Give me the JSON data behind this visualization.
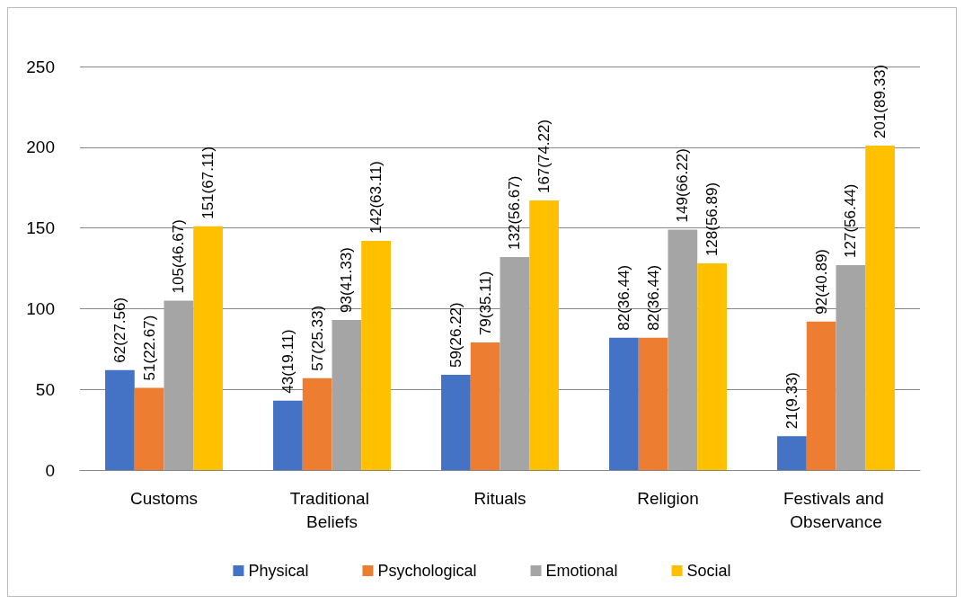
{
  "chart_data": {
    "type": "bar",
    "categories": [
      "Customs",
      "Traditional Beliefs",
      "Rituals",
      "Religion",
      "Festivals and Observance"
    ],
    "series": [
      {
        "name": "Physical",
        "color": "#4472c4",
        "values": [
          62,
          43,
          59,
          82,
          21
        ],
        "value_labels": [
          "62(27.56)",
          "43(19.11)",
          "59(26.22)",
          "82(36.44)",
          "21(9.33)"
        ]
      },
      {
        "name": "Psychological",
        "color": "#ed7d31",
        "values": [
          51,
          57,
          79,
          82,
          92
        ],
        "value_labels": [
          "51(22.67)",
          "57(25.33)",
          "79(35.11)",
          "82(36.44)",
          "92(40.89)"
        ]
      },
      {
        "name": "Emotional",
        "color": "#a5a5a5",
        "values": [
          105,
          93,
          132,
          149,
          127
        ],
        "value_labels": [
          "105(46.67)",
          "93(41.33)",
          "132(56.67)",
          "149(66.22)",
          "127(56.44)"
        ]
      },
      {
        "name": "Social",
        "color": "#ffc000",
        "values": [
          151,
          142,
          167,
          128,
          201
        ],
        "value_labels": [
          "151(67.11)",
          "142(63.11)",
          "167(74.22)",
          "128(56.89)",
          "201(89.33)"
        ]
      }
    ],
    "ylim": [
      0,
      250
    ],
    "yticks": [
      0,
      50,
      100,
      150,
      200,
      250
    ],
    "grid": "y",
    "legend": "bottom"
  }
}
